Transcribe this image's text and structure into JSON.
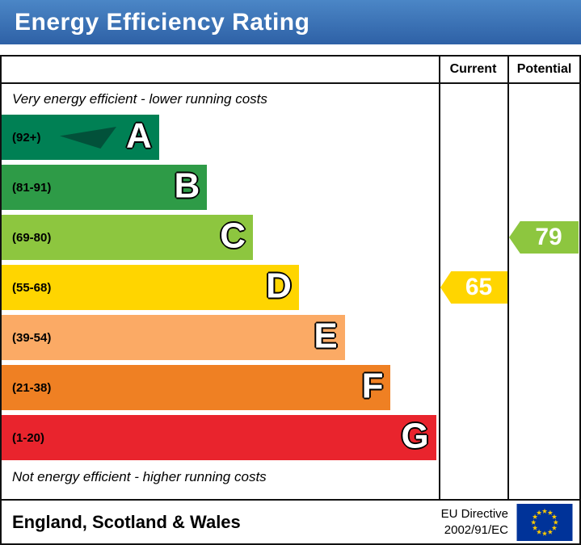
{
  "title": "Energy Efficiency Rating",
  "columns": {
    "current": "Current",
    "potential": "Potential"
  },
  "captions": {
    "top": "Very energy efficient - lower running costs",
    "bottom": "Not energy efficient - higher running costs"
  },
  "chart_data": {
    "type": "bar",
    "title": "Energy Efficiency Rating",
    "bands": [
      {
        "letter": "A",
        "range": "(92+)",
        "color": "#008054",
        "width_pct": 36
      },
      {
        "letter": "B",
        "range": "(81-91)",
        "color": "#2e9b47",
        "width_pct": 47
      },
      {
        "letter": "C",
        "range": "(69-80)",
        "color": "#8dc63f",
        "width_pct": 57.5
      },
      {
        "letter": "D",
        "range": "(55-68)",
        "color": "#ffd500",
        "width_pct": 68
      },
      {
        "letter": "E",
        "range": "(39-54)",
        "color": "#fbaa65",
        "width_pct": 78.5
      },
      {
        "letter": "F",
        "range": "(21-38)",
        "color": "#ef8023",
        "width_pct": 89
      },
      {
        "letter": "G",
        "range": "(1-20)",
        "color": "#e9242d",
        "width_pct": 99.4
      }
    ],
    "ratings": {
      "current": {
        "value": 65,
        "band": "D",
        "band_index": 3,
        "color": "#ffd500"
      },
      "potential": {
        "value": 79,
        "band": "C",
        "band_index": 2,
        "color": "#8dc63f"
      }
    },
    "legend_position": "none",
    "grid": false
  },
  "colors": {
    "banner_top": "#4b86c6",
    "banner_bottom": "#2e61a6",
    "swoosh": "#02513a",
    "eu_flag_blue": "#003399",
    "eu_flag_stars": "#ffcc00"
  },
  "footer": {
    "region": "England, Scotland & Wales",
    "directive_line1": "EU Directive",
    "directive_line2": "2002/91/EC"
  }
}
